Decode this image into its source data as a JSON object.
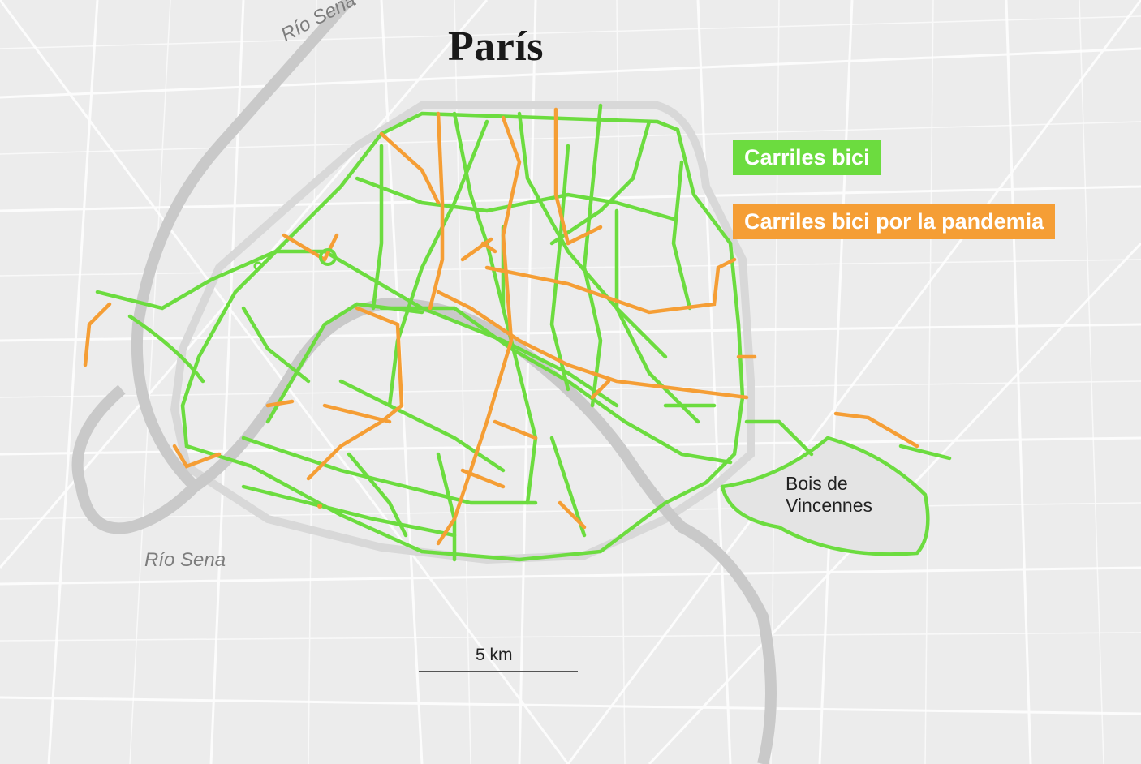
{
  "title": "París",
  "legend": {
    "items": [
      {
        "label": "Carriles bici",
        "color": "#6cdc3f"
      },
      {
        "label": "Carriles bici por la pandemia",
        "color": "#f59e35"
      }
    ]
  },
  "labels": {
    "river_north": "Río Sena",
    "river_south": "Río Sena",
    "park_line1": "Bois de",
    "park_line2": "Vincennes"
  },
  "scale": {
    "label": "5 km"
  },
  "colors": {
    "background": "#ececec",
    "streets": "#ffffff",
    "river": "#c9c9c9",
    "bike_lane": "#6cdc3f",
    "pandemic_bike_lane": "#f59e35"
  }
}
